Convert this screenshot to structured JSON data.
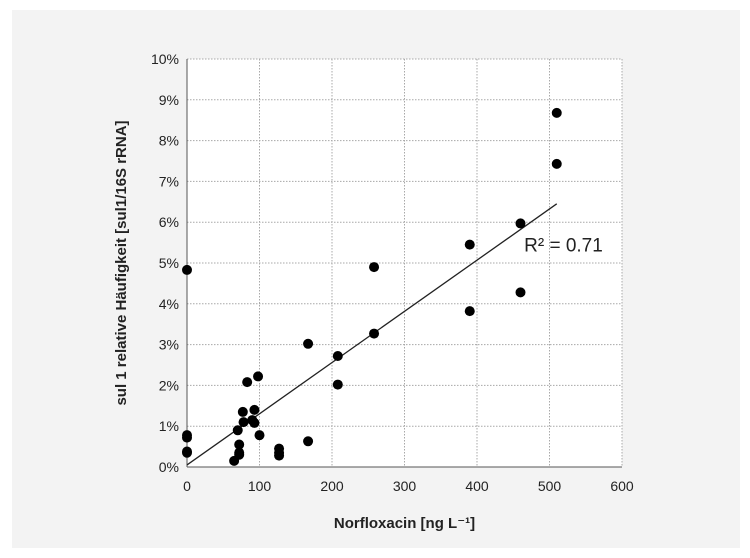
{
  "chart_data": {
    "type": "scatter",
    "xlabel": "Norfloxacin [ng L⁻¹]",
    "ylabel": "sul 1 relative Häufigkeit [sul1/16S rRNA]",
    "xlim": [
      0,
      600
    ],
    "ylim": [
      0,
      0.1
    ],
    "x_ticks": [
      "0",
      "100",
      "200",
      "300",
      "400",
      "500",
      "600"
    ],
    "y_ticks": [
      "0%",
      "1%",
      "2%",
      "3%",
      "4%",
      "5%",
      "6%",
      "7%",
      "8%",
      "9%",
      "10%"
    ],
    "grid": true,
    "colors": {
      "marker": "#000000",
      "grid": "#a8a8a8",
      "background": "#ffffff"
    },
    "series": [
      {
        "points": [
          [
            0,
            0.0483
          ],
          [
            0,
            0.0078
          ],
          [
            0,
            0.0072
          ],
          [
            0,
            0.0038
          ],
          [
            0,
            0.0035
          ],
          [
            65,
            0.0015
          ],
          [
            70,
            0.009
          ],
          [
            72,
            0.0055
          ],
          [
            72,
            0.0035
          ],
          [
            72,
            0.003
          ],
          [
            77,
            0.0135
          ],
          [
            78,
            0.011
          ],
          [
            83,
            0.0208
          ],
          [
            90,
            0.0115
          ],
          [
            93,
            0.014
          ],
          [
            93,
            0.0108
          ],
          [
            98,
            0.0222
          ],
          [
            100,
            0.0078
          ],
          [
            127,
            0.0045
          ],
          [
            127,
            0.0035
          ],
          [
            127,
            0.0028
          ],
          [
            167,
            0.0302
          ],
          [
            167,
            0.0063
          ],
          [
            208,
            0.0272
          ],
          [
            208,
            0.0202
          ],
          [
            258,
            0.049
          ],
          [
            258,
            0.0327
          ],
          [
            390,
            0.0545
          ],
          [
            390,
            0.0382
          ],
          [
            460,
            0.0597
          ],
          [
            460,
            0.0428
          ],
          [
            510,
            0.0868
          ],
          [
            510,
            0.0743
          ]
        ]
      }
    ],
    "trendline": {
      "type": "linear",
      "x": [
        0,
        510
      ],
      "y": [
        0.0005,
        0.0645
      ]
    },
    "annotation": {
      "text": "R² = 0.71",
      "x": 465,
      "y": 0.0545
    }
  }
}
